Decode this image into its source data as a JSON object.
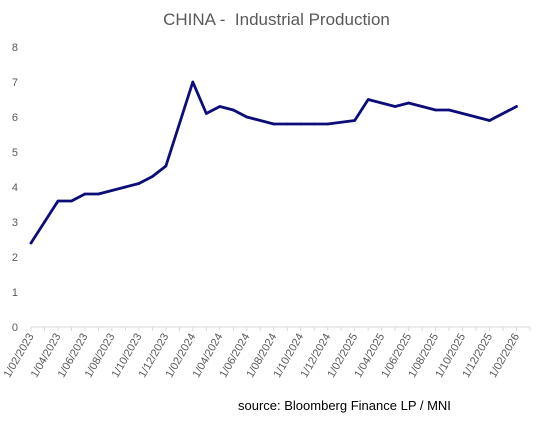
{
  "chart_data": {
    "type": "line",
    "title": "CHINA -  Industrial Production",
    "source": "source: Bloomberg Finance LP / MNI",
    "xlabel": "",
    "ylabel": "",
    "ylim": [
      0,
      8
    ],
    "y_ticks": [
      "0",
      "1",
      "2",
      "3",
      "4",
      "5",
      "6",
      "7",
      "8"
    ],
    "x_tick_labels": [
      "1/02/2023",
      "1/04/2023",
      "1/06/2023",
      "1/08/2023",
      "1/10/2023",
      "1/12/2023",
      "1/02/2024",
      "1/04/2024",
      "1/06/2024",
      "1/08/2024",
      "1/10/2024",
      "1/12/2024",
      "1/02/2025",
      "1/04/2025",
      "1/06/2025",
      "1/08/2025",
      "1/10/2025",
      "1/12/2025",
      "1/02/2026"
    ],
    "grid": false,
    "legend": "none",
    "line_color": "#0d0d7a",
    "series": [
      {
        "x": [
          "2023-02",
          "2023-03",
          "2023-04",
          "2023-05",
          "2023-06",
          "2023-07",
          "2023-08",
          "2023-09",
          "2023-10",
          "2023-11",
          "2023-12",
          "2024-02",
          "2024-03",
          "2024-04",
          "2024-05",
          "2024-06",
          "2024-07",
          "2024-08",
          "2024-09",
          "2024-10",
          "2024-11",
          "2024-12",
          "2025-02",
          "2025-03",
          "2025-04",
          "2025-05",
          "2025-06",
          "2025-07",
          "2025-08",
          "2025-09",
          "2025-10",
          "2025-11",
          "2025-12",
          "2026-02"
        ],
        "values": [
          2.4,
          3.0,
          3.6,
          3.6,
          3.8,
          3.8,
          3.9,
          4.0,
          4.1,
          4.3,
          4.6,
          7.0,
          6.1,
          6.3,
          6.2,
          6.0,
          5.9,
          5.8,
          5.8,
          5.8,
          5.8,
          5.8,
          5.9,
          6.5,
          6.4,
          6.3,
          6.4,
          6.3,
          6.2,
          6.2,
          6.1,
          6.0,
          5.9,
          6.3
        ]
      }
    ]
  }
}
